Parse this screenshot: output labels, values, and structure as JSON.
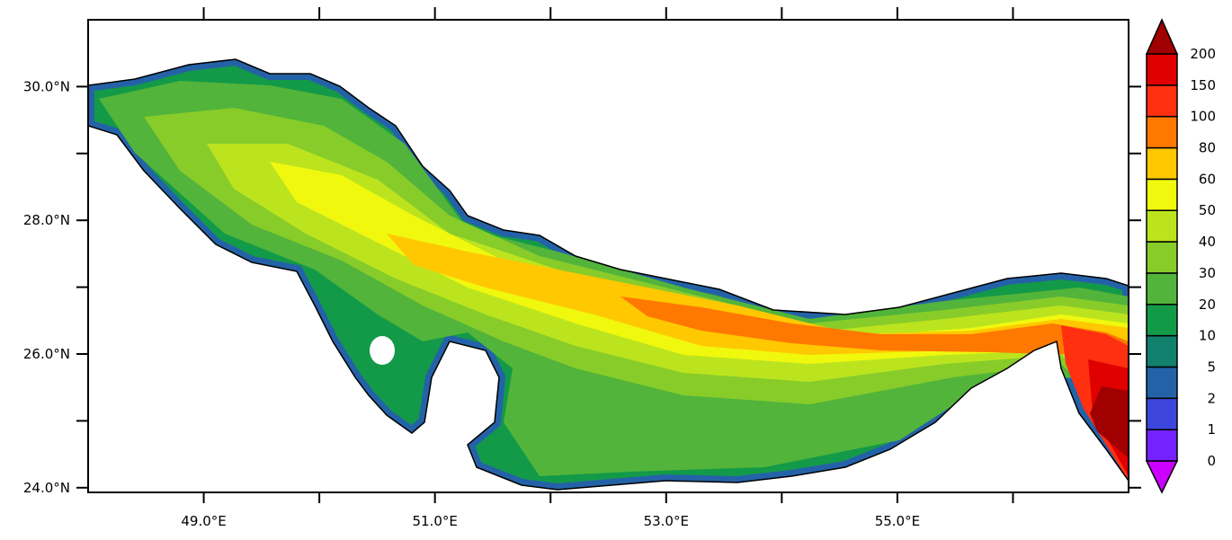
{
  "map": {
    "lon_range": [
      48.0,
      57.0
    ],
    "lat_range": [
      23.93,
      31.0
    ],
    "x_tick_values": [
      49,
      50,
      51,
      52,
      53,
      54,
      55,
      56
    ],
    "x_tick_labels": [
      "49.0°E",
      "",
      "51.0°E",
      "",
      "53.0°E",
      "",
      "55.0°E",
      ""
    ],
    "y_tick_values": [
      30,
      29,
      28,
      27,
      26,
      25,
      24
    ],
    "y_tick_labels": [
      "30.0°N",
      "",
      "28.0°N",
      "",
      "26.0°N",
      "",
      "24.0°N"
    ],
    "coastline_color": "#000000",
    "land_color": "#ffffff"
  },
  "colorbar": {
    "levels": [
      "0",
      "1",
      "2",
      "5",
      "10",
      "20",
      "30",
      "40",
      "50",
      "60",
      "80",
      "100",
      "150",
      "200"
    ],
    "colors": [
      "#cc00ff",
      "#7422ff",
      "#3c46dc",
      "#2462a8",
      "#11806c",
      "#139a48",
      "#52b43a",
      "#88cc2a",
      "#bce41e",
      "#f0f80e",
      "#ffc800",
      "#ff7800",
      "#ff3010",
      "#e00000",
      "#a00000"
    ],
    "extend": "both"
  }
}
